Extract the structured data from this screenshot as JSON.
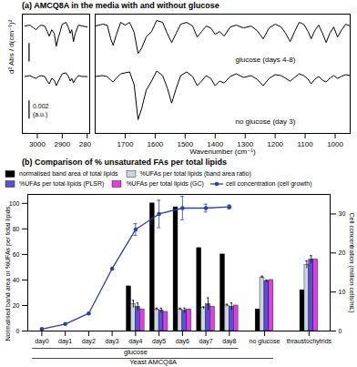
{
  "chart_data": [
    {
      "type": "line",
      "title": "(a) AMCQ8A in the media with and without glucose",
      "ylabel": "d² Abs / d(cm⁻¹)²",
      "x": [
        3050,
        3030,
        3015,
        3005,
        2995,
        2985,
        2970,
        2960,
        2952,
        2942,
        2932,
        2924,
        2915,
        2900,
        2885,
        2875,
        2868,
        2862,
        2855,
        2848,
        2835,
        2820,
        2800
      ],
      "series": [
        {
          "color": "#000000",
          "values": [
            0.0002,
            0.0003,
            0.0,
            -0.0002,
            0.0001,
            0.0003,
            0.0002,
            -0.0004,
            -0.0009,
            -0.0002,
            -0.0006,
            -0.002,
            -0.001,
            0.0004,
            0.0006,
            0.0,
            -0.0006,
            -0.0002,
            -0.0015,
            -0.0006,
            0.0003,
            0.0002,
            0.0001
          ]
        },
        {
          "color": "#000000",
          "values": [
            -0.0053,
            -0.0052,
            -0.0054,
            -0.0055,
            -0.0053,
            -0.0052,
            -0.0053,
            -0.0058,
            -0.0061,
            -0.0055,
            -0.0057,
            -0.0063,
            -0.0058,
            -0.005,
            -0.0049,
            -0.0053,
            -0.0058,
            -0.0055,
            -0.006,
            -0.0056,
            -0.0052,
            -0.0053,
            -0.0053
          ]
        }
      ],
      "xlim": [
        3060,
        2790
      ],
      "xticks": [
        3000,
        2900,
        2800
      ],
      "ylim": [
        -0.0115,
        0.0015
      ],
      "yticks": [],
      "tick_labels": "x",
      "grid": false,
      "scale_bar": 0.002,
      "scale_bar_unit": "(a.u.)"
    },
    {
      "type": "line",
      "xlabel": "Wavenumber (cm⁻¹)",
      "x": [
        1800,
        1775,
        1760,
        1748,
        1740,
        1730,
        1715,
        1700,
        1685,
        1670,
        1657,
        1645,
        1630,
        1612,
        1595,
        1575,
        1560,
        1545,
        1530,
        1515,
        1495,
        1475,
        1460,
        1445,
        1430,
        1415,
        1400,
        1385,
        1370,
        1350,
        1330,
        1305,
        1280,
        1260,
        1240,
        1220,
        1200,
        1180,
        1165,
        1150,
        1135,
        1120,
        1105,
        1090,
        1080,
        1068,
        1055,
        1042,
        1030,
        1018,
        1005,
        992,
        980,
        965,
        950
      ],
      "series": [
        {
          "name": "glucose (days 4-8)",
          "color": "#000000",
          "values": [
            0.0002,
            0.0004,
            0.0003,
            -0.0012,
            -0.0019,
            -0.0008,
            0.0006,
            0.0003,
            0.0006,
            -0.0005,
            -0.0028,
            -0.0022,
            -0.001,
            -0.0004,
            0.0008,
            0.0006,
            -0.0006,
            -0.0016,
            -0.0006,
            0.0004,
            0.0006,
            0.0002,
            -0.001,
            -0.0004,
            0.0002,
            0.0,
            -0.0007,
            -0.0004,
            -0.0009,
            0.0001,
            0.0003,
            0.0,
            0.0002,
            -0.0003,
            -0.0012,
            0.0,
            0.0004,
            0.0001,
            -0.0006,
            -0.0015,
            -0.0004,
            0.0006,
            0.0004,
            -0.0004,
            -0.0012,
            -0.0003,
            0.0003,
            -0.0006,
            -0.0016,
            -0.0006,
            0.0001,
            -0.001,
            -0.0003,
            0.0004,
            0.0002
          ]
        },
        {
          "name": "no glucose (day 3)",
          "color": "#000000",
          "values": [
            -0.0053,
            -0.0052,
            -0.0053,
            -0.0057,
            -0.0059,
            -0.0055,
            -0.005,
            -0.0049,
            -0.0048,
            -0.0062,
            -0.01,
            -0.0088,
            -0.0068,
            -0.0058,
            -0.0047,
            -0.0052,
            -0.0065,
            -0.0082,
            -0.0066,
            -0.0052,
            -0.0048,
            -0.0053,
            -0.0063,
            -0.0058,
            -0.0052,
            -0.0055,
            -0.0063,
            -0.0058,
            -0.006,
            -0.0053,
            -0.005,
            -0.0054,
            -0.0052,
            -0.0056,
            -0.0063,
            -0.0055,
            -0.0051,
            -0.0052,
            -0.0055,
            -0.0058,
            -0.0054,
            -0.005,
            -0.0052,
            -0.0056,
            -0.0061,
            -0.0056,
            -0.0053,
            -0.0057,
            -0.0059,
            -0.0055,
            -0.0052,
            -0.0055,
            -0.0053,
            -0.0051,
            -0.0052
          ]
        }
      ],
      "xlim": [
        1800,
        950
      ],
      "xticks": [
        1700,
        1600,
        1500,
        1400,
        1300,
        1200,
        1100,
        1000
      ],
      "ylim": [
        -0.0115,
        0.0015
      ],
      "yticks": [],
      "tick_labels": "x",
      "grid": false
    },
    {
      "type": "bar",
      "title": "(b) Comparison of % unsaturated FAs per total lipids",
      "categories": [
        "day0",
        "day1",
        "day2",
        "day3",
        "day4",
        "day5",
        "day6",
        "day7",
        "day8",
        "no glucose",
        "thraustochytrids"
      ],
      "group_labels": [
        {
          "label": "glucose",
          "from": "day0",
          "to": "day8"
        },
        {
          "label": "Yeast AMCQ8A",
          "from": "day0",
          "to": "no glucose"
        }
      ],
      "ylabel": "Normalised band area or %UFAs per total lipids",
      "y2label": "Cell concentration (million cells/mL)",
      "ylim": [
        0,
        107
      ],
      "yticks": [
        0,
        20,
        40,
        60,
        80,
        100
      ],
      "y2lim": [
        0,
        35
      ],
      "y2ticks": [
        0,
        10,
        20,
        30
      ],
      "legend": "top",
      "grid": false,
      "series": [
        {
          "name": "normalised band area of total lipids",
          "type": "bar",
          "color": "#000000",
          "values": [
            null,
            null,
            null,
            null,
            35,
            100,
            97,
            65,
            60,
            17,
            32
          ]
        },
        {
          "name": "%UFAs per total lipids (band area ratio)",
          "type": "bar",
          "color": "#c9d5df",
          "values": [
            null,
            null,
            null,
            null,
            21,
            17,
            17,
            18,
            20,
            42,
            52
          ],
          "errors": [
            null,
            null,
            null,
            null,
            3,
            1,
            1,
            1,
            1,
            1,
            3
          ]
        },
        {
          "name": "%UFAs per total lipids (PLSR)",
          "type": "bar",
          "color": "#5b4fd9",
          "values": [
            null,
            null,
            null,
            null,
            19,
            16,
            16,
            21,
            19,
            39,
            56
          ],
          "errors": [
            null,
            null,
            null,
            null,
            3,
            2,
            2,
            5,
            3,
            1,
            3
          ]
        },
        {
          "name": "%UFAs per total lipids (GC)",
          "type": "bar",
          "color": "#e23ce6",
          "values": [
            null,
            null,
            null,
            null,
            17,
            15,
            17,
            19,
            20,
            40,
            56
          ]
        },
        {
          "name": "cell concentration (cell growth)",
          "type": "line",
          "axis": "y2",
          "marker": "circle",
          "color": "#2a3fb0",
          "values": [
            0.5,
            1.8,
            4.5,
            16,
            26,
            30,
            31.5,
            31.5,
            31.8,
            null,
            null
          ],
          "errors": [
            null,
            null,
            null,
            null,
            1.5,
            3.5,
            3,
            1,
            0.5,
            null,
            null
          ]
        }
      ]
    }
  ]
}
